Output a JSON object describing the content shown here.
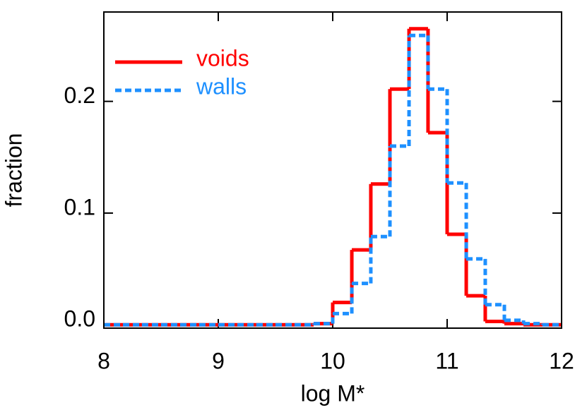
{
  "chart_data": {
    "type": "histogram",
    "xlabel": "log M*",
    "ylabel": "fraction",
    "bins": [
      8,
      8.167,
      8.333,
      8.5,
      8.667,
      8.833,
      9,
      9.167,
      9.333,
      9.5,
      9.667,
      9.833,
      10,
      10.167,
      10.333,
      10.5,
      10.667,
      10.833,
      11,
      11.167,
      11.333,
      11.5,
      11.667,
      11.833,
      12
    ],
    "series": [
      {
        "name": "voids",
        "color": "#ff0000",
        "dash": "solid",
        "values": [
          0,
          0,
          0,
          0,
          0,
          0,
          0,
          0,
          0,
          0,
          0,
          0.001,
          0.02,
          0.067,
          0.126,
          0.211,
          0.265,
          0.172,
          0.081,
          0.026,
          0.003,
          0.001,
          0,
          0
        ]
      },
      {
        "name": "walls",
        "color": "#1e90ff",
        "dash": "dashed",
        "values": [
          0,
          0,
          0,
          0,
          0,
          0,
          0,
          0,
          0,
          0,
          0,
          0.001,
          0.01,
          0.037,
          0.079,
          0.16,
          0.259,
          0.211,
          0.127,
          0.059,
          0.018,
          0.004,
          0.001,
          0
        ]
      }
    ],
    "xlim": [
      8,
      12
    ],
    "ylim": [
      -0.003,
      0.28
    ],
    "xticks": [
      8,
      9,
      10,
      11,
      12
    ],
    "yticks": [
      {
        "value": 0,
        "label": "0.0"
      },
      0.1,
      0.2
    ],
    "legend": "upper left"
  }
}
